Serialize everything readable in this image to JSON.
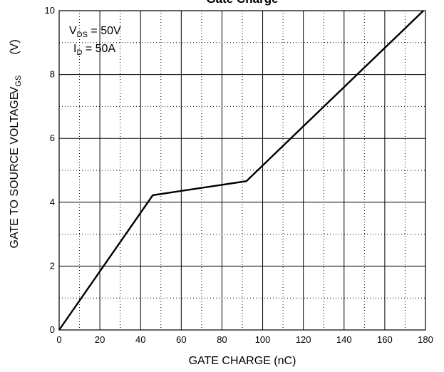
{
  "chart_data": {
    "type": "line",
    "title": "Gate Charge",
    "xlabel": "GATE CHARGE (nC)",
    "ylabel": "GATE TO SOURCE VOLTAGE",
    "ylabel_symbol": "V",
    "ylabel_symbol_sub": "GS",
    "ylabel_unit": "(V)",
    "xlim": [
      0,
      180
    ],
    "ylim": [
      0,
      10
    ],
    "x_ticks": [
      "0",
      "20",
      "40",
      "60",
      "80",
      "100",
      "120",
      "140",
      "160",
      "180"
    ],
    "y_ticks": [
      "0",
      "2",
      "4",
      "6",
      "8",
      "10"
    ],
    "grid": {
      "major": true,
      "minor_dotted": true
    },
    "annotations": [
      {
        "symbol": "V",
        "sub": "DS",
        "text": " = 50V"
      },
      {
        "symbol": "I",
        "sub": "D",
        "text": " = 50A"
      }
    ],
    "series": [
      {
        "color": "#000000",
        "points": [
          [
            0,
            0
          ],
          [
            46,
            4.22
          ],
          [
            92,
            4.66
          ],
          [
            179,
            10
          ]
        ]
      }
    ]
  }
}
